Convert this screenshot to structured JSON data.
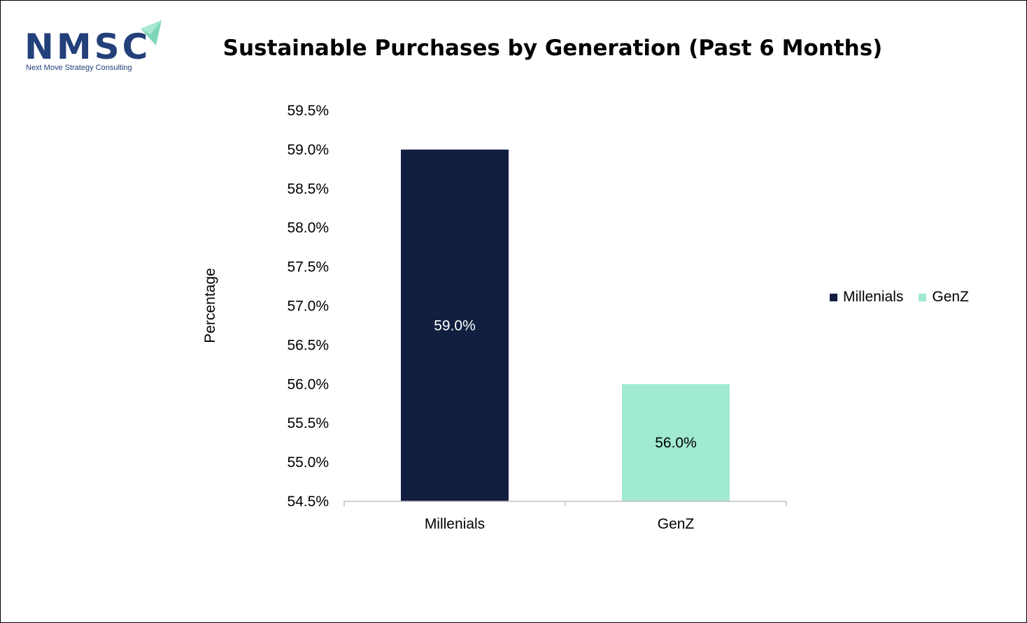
{
  "logo": {
    "text": "NMSC",
    "subtext": "Next Move Strategy Consulting"
  },
  "chart_data": {
    "type": "bar",
    "title": "Sustainable Purchases by Generation (Past 6 Months)",
    "xlabel": "",
    "ylabel": "Percentage",
    "categories": [
      "Millenials",
      "GenZ"
    ],
    "values": [
      59.0,
      56.0
    ],
    "data_labels": [
      "59.0%",
      "56.0%"
    ],
    "colors": [
      "#121f40",
      "#a0ead2"
    ],
    "label_colors": [
      "#ffffff",
      "#000000"
    ],
    "ylim": [
      54.5,
      59.5
    ],
    "yticks": [
      54.5,
      55.0,
      55.5,
      56.0,
      56.5,
      57.0,
      57.5,
      58.0,
      58.5,
      59.0,
      59.5
    ],
    "ytick_labels": [
      "54.5%",
      "55.0%",
      "55.5%",
      "56.0%",
      "56.5%",
      "57.0%",
      "57.5%",
      "58.0%",
      "58.5%",
      "59.0%",
      "59.5%"
    ],
    "grid": false,
    "legend": {
      "position": "right",
      "entries": [
        {
          "label": "Millenials",
          "color": "#121f40"
        },
        {
          "label": "GenZ",
          "color": "#a0ead2"
        }
      ]
    }
  }
}
